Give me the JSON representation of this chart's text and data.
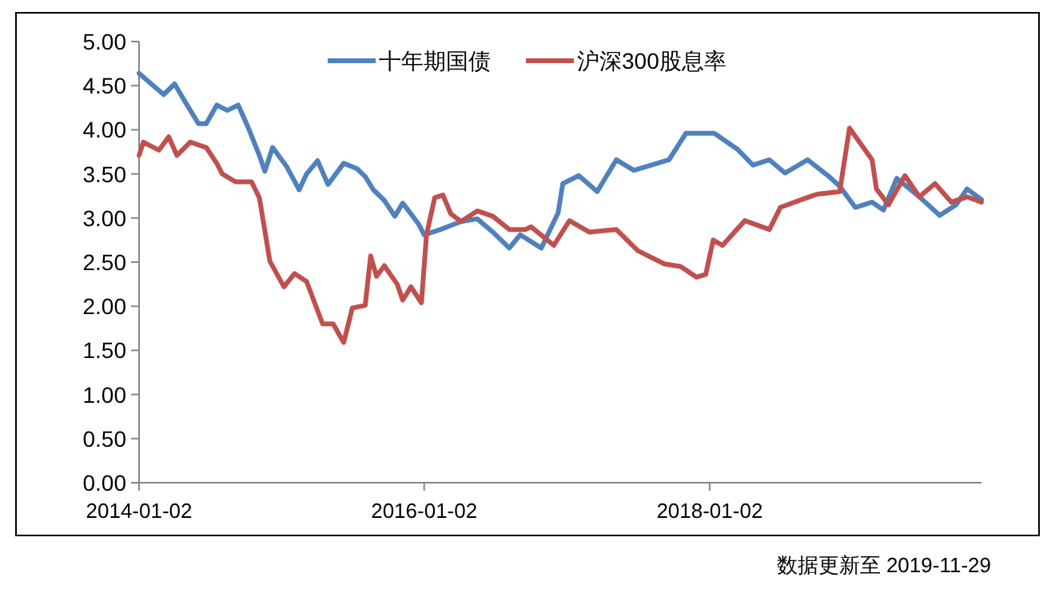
{
  "chart_data": {
    "type": "line",
    "legend": "top",
    "line_style": "solid",
    "marker": "none",
    "xlim": [
      "2014-01-02",
      "2019-11-29"
    ],
    "xticks": [
      "2014-01-02",
      "2016-01-02",
      "2018-01-02"
    ],
    "ylim": [
      0,
      5
    ],
    "yticks": [
      {
        "value": 0,
        "label": "0.00"
      },
      {
        "value": 0.5,
        "label": "0.50"
      },
      {
        "value": 1,
        "label": "1.00"
      },
      {
        "value": 1.5,
        "label": "1.50"
      },
      {
        "value": 2,
        "label": "2.00"
      },
      {
        "value": 2.5,
        "label": "2.50"
      },
      {
        "value": 3,
        "label": "3.00"
      },
      {
        "value": 3.5,
        "label": "3.50"
      },
      {
        "value": 4,
        "label": "4.00"
      },
      {
        "value": 4.5,
        "label": "4.50"
      },
      {
        "value": 5,
        "label": "5.00"
      }
    ],
    "annotations": [
      "数据更新至 2019-11-29"
    ],
    "series": [
      {
        "name": "十年期国债",
        "color": "#4f81bd",
        "x": [
          "2014-01-02",
          "2014-02-10",
          "2014-03-06",
          "2014-04-03",
          "2014-05-01",
          "2014-06-03",
          "2014-06-23",
          "2014-07-20",
          "2014-08-16",
          "2014-09-13",
          "2014-10-10",
          "2014-11-06",
          "2014-11-20",
          "2014-12-10",
          "2015-01-14",
          "2015-02-16",
          "2015-03-07",
          "2015-04-04",
          "2015-05-01",
          "2015-06-10",
          "2015-07-14",
          "2015-08-04",
          "2015-08-25",
          "2015-09-22",
          "2015-10-19",
          "2015-11-08",
          "2015-12-19",
          "2016-01-02",
          "2016-02-13",
          "2016-04-05",
          "2016-05-17",
          "2016-06-26",
          "2016-08-07",
          "2016-09-04",
          "2016-10-28",
          "2016-12-10",
          "2016-12-22",
          "2017-02-01",
          "2017-03-20",
          "2017-05-08",
          "2017-06-22",
          "2017-09-20",
          "2017-11-02",
          "2018-01-14",
          "2018-03-14",
          "2018-04-23",
          "2018-06-04",
          "2018-07-14",
          "2018-09-10",
          "2018-11-01",
          "2018-12-01",
          "2019-01-10",
          "2019-02-22",
          "2019-03-23",
          "2019-04-26",
          "2019-06-23",
          "2019-08-14",
          "2019-09-25",
          "2019-10-23",
          "2019-11-29"
        ],
        "values": [
          4.64,
          4.49,
          4.4,
          4.52,
          4.31,
          4.07,
          4.07,
          4.28,
          4.22,
          4.28,
          4.01,
          3.71,
          3.53,
          3.8,
          3.59,
          3.32,
          3.5,
          3.65,
          3.38,
          3.62,
          3.56,
          3.47,
          3.32,
          3.2,
          3.02,
          3.17,
          2.93,
          2.81,
          2.87,
          2.96,
          2.99,
          2.84,
          2.66,
          2.81,
          2.66,
          3.06,
          3.39,
          3.48,
          3.3,
          3.66,
          3.54,
          3.66,
          3.96,
          3.96,
          3.78,
          3.6,
          3.66,
          3.51,
          3.66,
          3.48,
          3.36,
          3.12,
          3.18,
          3.09,
          3.45,
          3.24,
          3.03,
          3.15,
          3.33,
          3.21
        ]
      },
      {
        "name": "沪深300股息率",
        "color": "#c0504d",
        "x": [
          "2014-01-02",
          "2014-01-13",
          "2014-02-22",
          "2014-03-19",
          "2014-04-09",
          "2014-05-13",
          "2014-06-23",
          "2014-07-20",
          "2014-08-03",
          "2014-09-06",
          "2014-10-17",
          "2014-11-06",
          "2014-12-03",
          "2015-01-08",
          "2015-02-04",
          "2015-03-07",
          "2015-04-17",
          "2015-05-14",
          "2015-06-10",
          "2015-07-02",
          "2015-08-04",
          "2015-08-18",
          "2015-09-02",
          "2015-09-22",
          "2015-10-25",
          "2015-11-08",
          "2015-11-29",
          "2015-12-26",
          "2016-01-08",
          "2016-01-29",
          "2016-02-19",
          "2016-03-10",
          "2016-04-05",
          "2016-05-17",
          "2016-06-26",
          "2016-08-07",
          "2016-09-17",
          "2016-10-02",
          "2016-11-29",
          "2017-01-08",
          "2017-02-28",
          "2017-05-08",
          "2017-07-02",
          "2017-09-08",
          "2017-10-20",
          "2017-11-29",
          "2017-12-23",
          "2018-01-11",
          "2018-02-04",
          "2018-04-02",
          "2018-06-04",
          "2018-07-02",
          "2018-08-26",
          "2018-10-04",
          "2018-12-01",
          "2018-12-26",
          "2019-02-22",
          "2019-03-05",
          "2019-04-05",
          "2019-05-17",
          "2019-06-23",
          "2019-08-02",
          "2019-09-13",
          "2019-10-23",
          "2019-11-29"
        ],
        "values": [
          3.71,
          3.86,
          3.77,
          3.92,
          3.71,
          3.86,
          3.8,
          3.62,
          3.5,
          3.41,
          3.41,
          3.23,
          2.51,
          2.22,
          2.37,
          2.28,
          1.8,
          1.8,
          1.59,
          1.98,
          2.01,
          2.57,
          2.34,
          2.46,
          2.25,
          2.07,
          2.22,
          2.04,
          2.81,
          3.23,
          3.26,
          3.05,
          2.96,
          3.08,
          3.02,
          2.87,
          2.87,
          2.9,
          2.69,
          2.97,
          2.84,
          2.87,
          2.63,
          2.48,
          2.45,
          2.33,
          2.36,
          2.75,
          2.69,
          2.97,
          2.87,
          3.12,
          3.21,
          3.27,
          3.3,
          4.02,
          3.66,
          3.33,
          3.15,
          3.48,
          3.24,
          3.39,
          3.18,
          3.24,
          3.18
        ]
      }
    ]
  }
}
